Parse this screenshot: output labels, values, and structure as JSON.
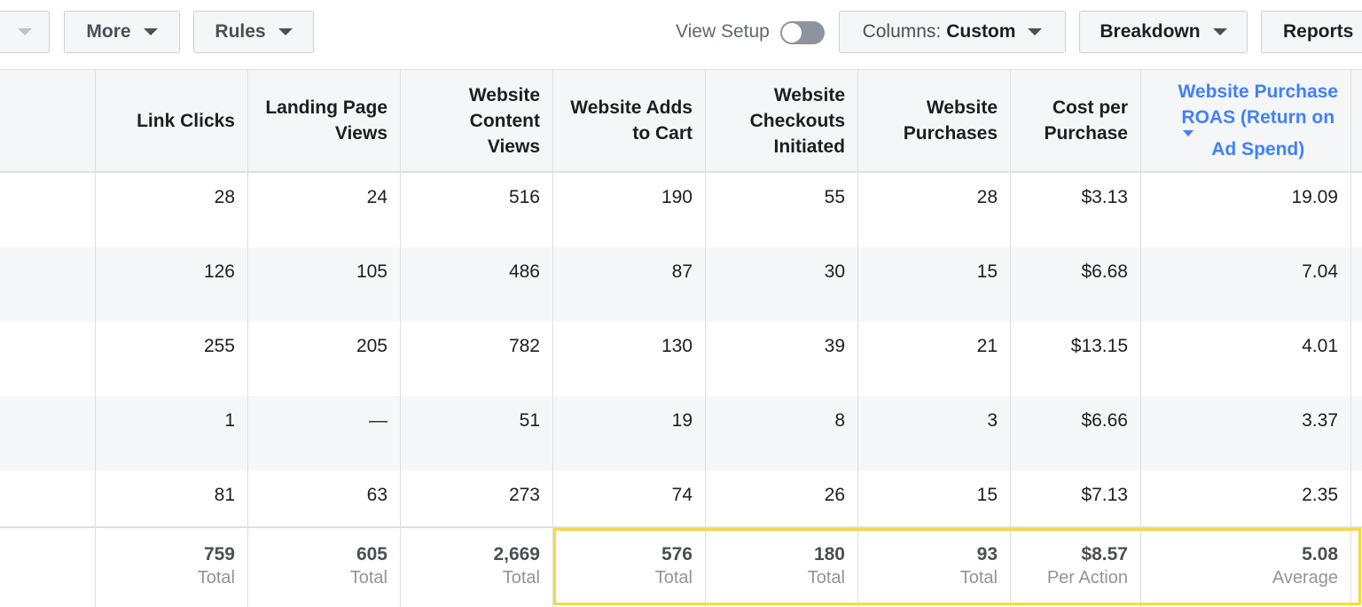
{
  "toolbar": {
    "more_label": "More",
    "rules_label": "Rules",
    "view_setup_label": "View Setup",
    "view_setup_on": false,
    "columns_prefix": "Columns:",
    "columns_value": "Custom",
    "breakdown_label": "Breakdown",
    "reports_label": "Reports"
  },
  "table": {
    "headers": [
      [
        "Link Clicks"
      ],
      [
        "Landing Page",
        "Views"
      ],
      [
        "Website",
        "Content",
        "Views"
      ],
      [
        "Website Adds",
        "to Cart"
      ],
      [
        "Website",
        "Checkouts",
        "Initiated"
      ],
      [
        "Website",
        "Purchases"
      ],
      [
        "Cost per",
        "Purchase"
      ],
      [
        "Website Purchase",
        "ROAS (Return on",
        "Ad Spend)"
      ]
    ],
    "sorted_column": "Website Purchase ROAS (Return on Ad Spend)",
    "rows": [
      [
        "28",
        "24",
        "516",
        "190",
        "55",
        "28",
        "$3.13",
        "19.09"
      ],
      [
        "126",
        "105",
        "486",
        "87",
        "30",
        "15",
        "$6.68",
        "7.04"
      ],
      [
        "255",
        "205",
        "782",
        "130",
        "39",
        "21",
        "$13.15",
        "4.01"
      ],
      [
        "1",
        "—",
        "51",
        "19",
        "8",
        "3",
        "$6.66",
        "3.37"
      ],
      [
        "81",
        "63",
        "273",
        "74",
        "26",
        "15",
        "$7.13",
        "2.35"
      ]
    ],
    "totals": [
      {
        "value": "759",
        "label": "Total"
      },
      {
        "value": "605",
        "label": "Total"
      },
      {
        "value": "2,669",
        "label": "Total"
      },
      {
        "value": "576",
        "label": "Total"
      },
      {
        "value": "180",
        "label": "Total"
      },
      {
        "value": "93",
        "label": "Total"
      },
      {
        "value": "$8.57",
        "label": "Per Action"
      },
      {
        "value": "5.08",
        "label": "Average"
      }
    ],
    "highlight_color": "#f7d842",
    "link_color": "#4080ff"
  }
}
